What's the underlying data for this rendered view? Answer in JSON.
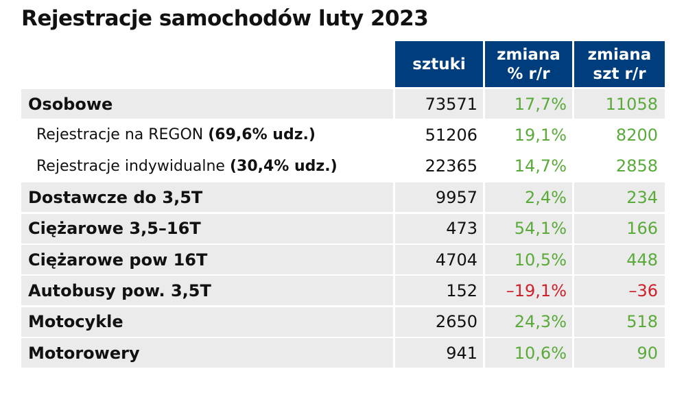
{
  "chart_data": {
    "type": "table",
    "title": "Rejestracje samochodów luty 2023",
    "columns": [
      {
        "line1": "sztuki",
        "line2": ""
      },
      {
        "line1": "zmiana",
        "line2": "% r/r"
      },
      {
        "line1": "zmiana",
        "line2": "szt r/r"
      }
    ],
    "rows": [
      {
        "label": "Osobowe",
        "share": "",
        "style": "bold",
        "shade": true,
        "sztuki": "73571",
        "pct": "17,7%",
        "szt": "11058",
        "negative": false
      },
      {
        "label": "Rejestracje na REGON ",
        "share": "(69,6% udz.)",
        "style": "sub",
        "shade": false,
        "sztuki": "51206",
        "pct": "19,1%",
        "szt": "8200",
        "negative": false
      },
      {
        "label": "Rejestracje indywidualne ",
        "share": "(30,4% udz.)",
        "style": "sub",
        "shade": false,
        "sztuki": "22365",
        "pct": "14,7%",
        "szt": "2858",
        "negative": false
      },
      {
        "label": "Dostawcze do 3,5T",
        "share": "",
        "style": "bold",
        "shade": true,
        "sztuki": "9957",
        "pct": "2,4%",
        "szt": "234",
        "negative": false
      },
      {
        "label": "Ciężarowe 3,5–16T",
        "share": "",
        "style": "bold",
        "shade": true,
        "sztuki": "473",
        "pct": "54,1%",
        "szt": "166",
        "negative": false
      },
      {
        "label": "Ciężarowe pow 16T",
        "share": "",
        "style": "bold",
        "shade": true,
        "sztuki": "4704",
        "pct": "10,5%",
        "szt": "448",
        "negative": false
      },
      {
        "label": "Autobusy pow. 3,5T",
        "share": "",
        "style": "bold",
        "shade": true,
        "sztuki": "152",
        "pct": "–19,1%",
        "szt": "–36",
        "negative": true
      },
      {
        "label": "Motocykle",
        "share": "",
        "style": "bold",
        "shade": true,
        "sztuki": "2650",
        "pct": "24,3%",
        "szt": "518",
        "negative": false
      },
      {
        "label": "Motorowery",
        "share": "",
        "style": "bold",
        "shade": true,
        "sztuki": "941",
        "pct": "10,6%",
        "szt": "90",
        "negative": false
      }
    ],
    "colors": {
      "header_bg": "#003d7c",
      "positive": "#5aaa3a",
      "negative": "#d0202a",
      "shade": "#ebebeb"
    }
  }
}
